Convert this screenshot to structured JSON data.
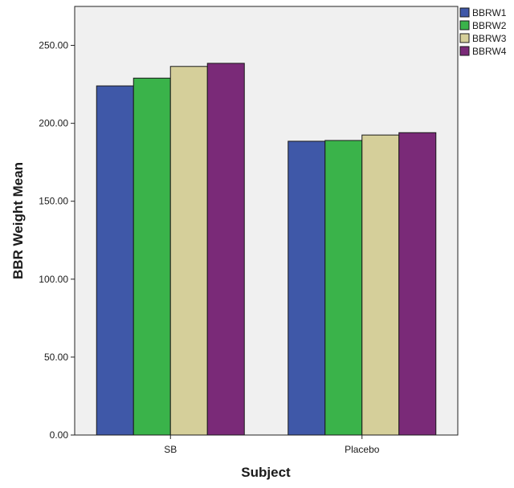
{
  "chart_data": {
    "type": "bar",
    "title": "",
    "xlabel": "Subject",
    "ylabel": "BBR Weight Mean",
    "categories": [
      "SB",
      "Placebo"
    ],
    "series": [
      {
        "name": "BBRW1",
        "values": [
          224.0,
          188.5
        ],
        "color": "#3f58a8"
      },
      {
        "name": "BBRW2",
        "values": [
          229.0,
          189.0
        ],
        "color": "#3ab34a"
      },
      {
        "name": "BBRW3",
        "values": [
          236.5,
          192.5
        ],
        "color": "#d5cf9a"
      },
      {
        "name": "BBRW4",
        "values": [
          238.5,
          194.0
        ],
        "color": "#7a2a78"
      }
    ],
    "ylim": [
      0,
      275
    ],
    "yticks": [
      0,
      50,
      100,
      150,
      200,
      250
    ],
    "ytick_labels": [
      "0.00",
      "50.00",
      "100.00",
      "150.00",
      "200.00",
      "250.00"
    ],
    "grid": false,
    "legend_position": "top-right",
    "plot_background": "#f0f0f0"
  }
}
